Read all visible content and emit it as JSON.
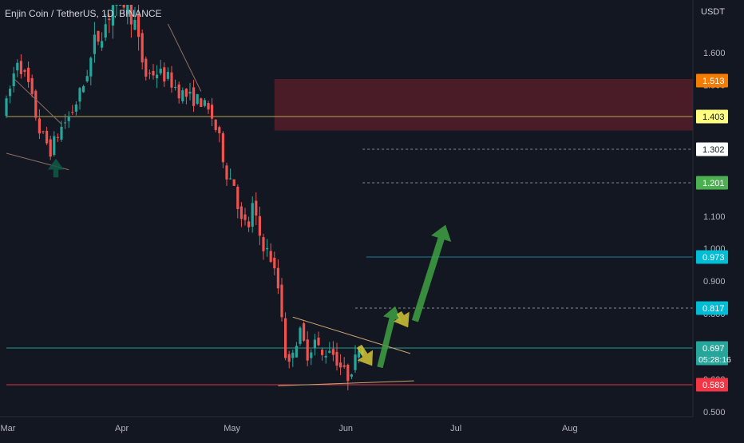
{
  "header": {
    "symbol_title": "Enjin Coin / TetherUS, 1D, BINANCE",
    "currency": "USDT"
  },
  "colors": {
    "background": "#131722",
    "up_candle": "#26a69a",
    "down_candle": "#ef5350",
    "resistance_zone": "#5c1f2b",
    "arrow_green": "#3fa142",
    "arrow_yellow": "#d4c637",
    "axis_text": "#b2b5be"
  },
  "chart_data": {
    "type": "candlestick",
    "x_axis_ticks": [
      "Mar",
      "Apr",
      "May",
      "Jun",
      "Jul",
      "Aug"
    ],
    "y_axis_ticks": [
      "1.600",
      "1.500",
      "1.100",
      "1.000",
      "0.900",
      "0.800",
      "0.600",
      "0.500"
    ],
    "ylim": [
      0.49,
      1.7
    ],
    "price_labels": [
      {
        "value": 1.513,
        "label": "1.513",
        "bg": "#f57c00",
        "fg": "#ffffff"
      },
      {
        "value": 1.403,
        "label": "1.403",
        "bg": "#ffff80",
        "fg": "#131722"
      },
      {
        "value": 1.302,
        "label": "1.302",
        "bg": "#ffffff",
        "fg": "#131722"
      },
      {
        "value": 1.201,
        "label": "1.201",
        "bg": "#4caf50",
        "fg": "#ffffff"
      },
      {
        "value": 0.973,
        "label": "0.973",
        "bg": "#00bcd4",
        "fg": "#ffffff"
      },
      {
        "value": 0.817,
        "label": "0.817",
        "bg": "#00bcd4",
        "fg": "#ffffff"
      },
      {
        "value": 0.697,
        "label": "0.697",
        "sub": "05:28:16",
        "bg": "#26a69a",
        "fg": "#ffffff"
      },
      {
        "value": 0.583,
        "label": "0.583",
        "bg": "#f23645",
        "fg": "#ffffff"
      }
    ],
    "resistance_zone": {
      "low": 1.36,
      "high": 1.518
    },
    "horizontal_levels": [
      {
        "value": 1.403,
        "style": "solid",
        "color": "#c9b458"
      },
      {
        "value": 1.302,
        "style": "dashed",
        "color": "#9598a1"
      },
      {
        "value": 1.201,
        "style": "dashed",
        "color": "#9598a1"
      },
      {
        "value": 0.973,
        "style": "solid",
        "color": "#1e88a8"
      },
      {
        "value": 0.817,
        "style": "dashed",
        "color": "#9598a1"
      },
      {
        "value": 0.697,
        "style": "solid",
        "color": "#26a69a"
      },
      {
        "value": 0.583,
        "style": "solid",
        "color": "#f23645"
      }
    ]
  }
}
